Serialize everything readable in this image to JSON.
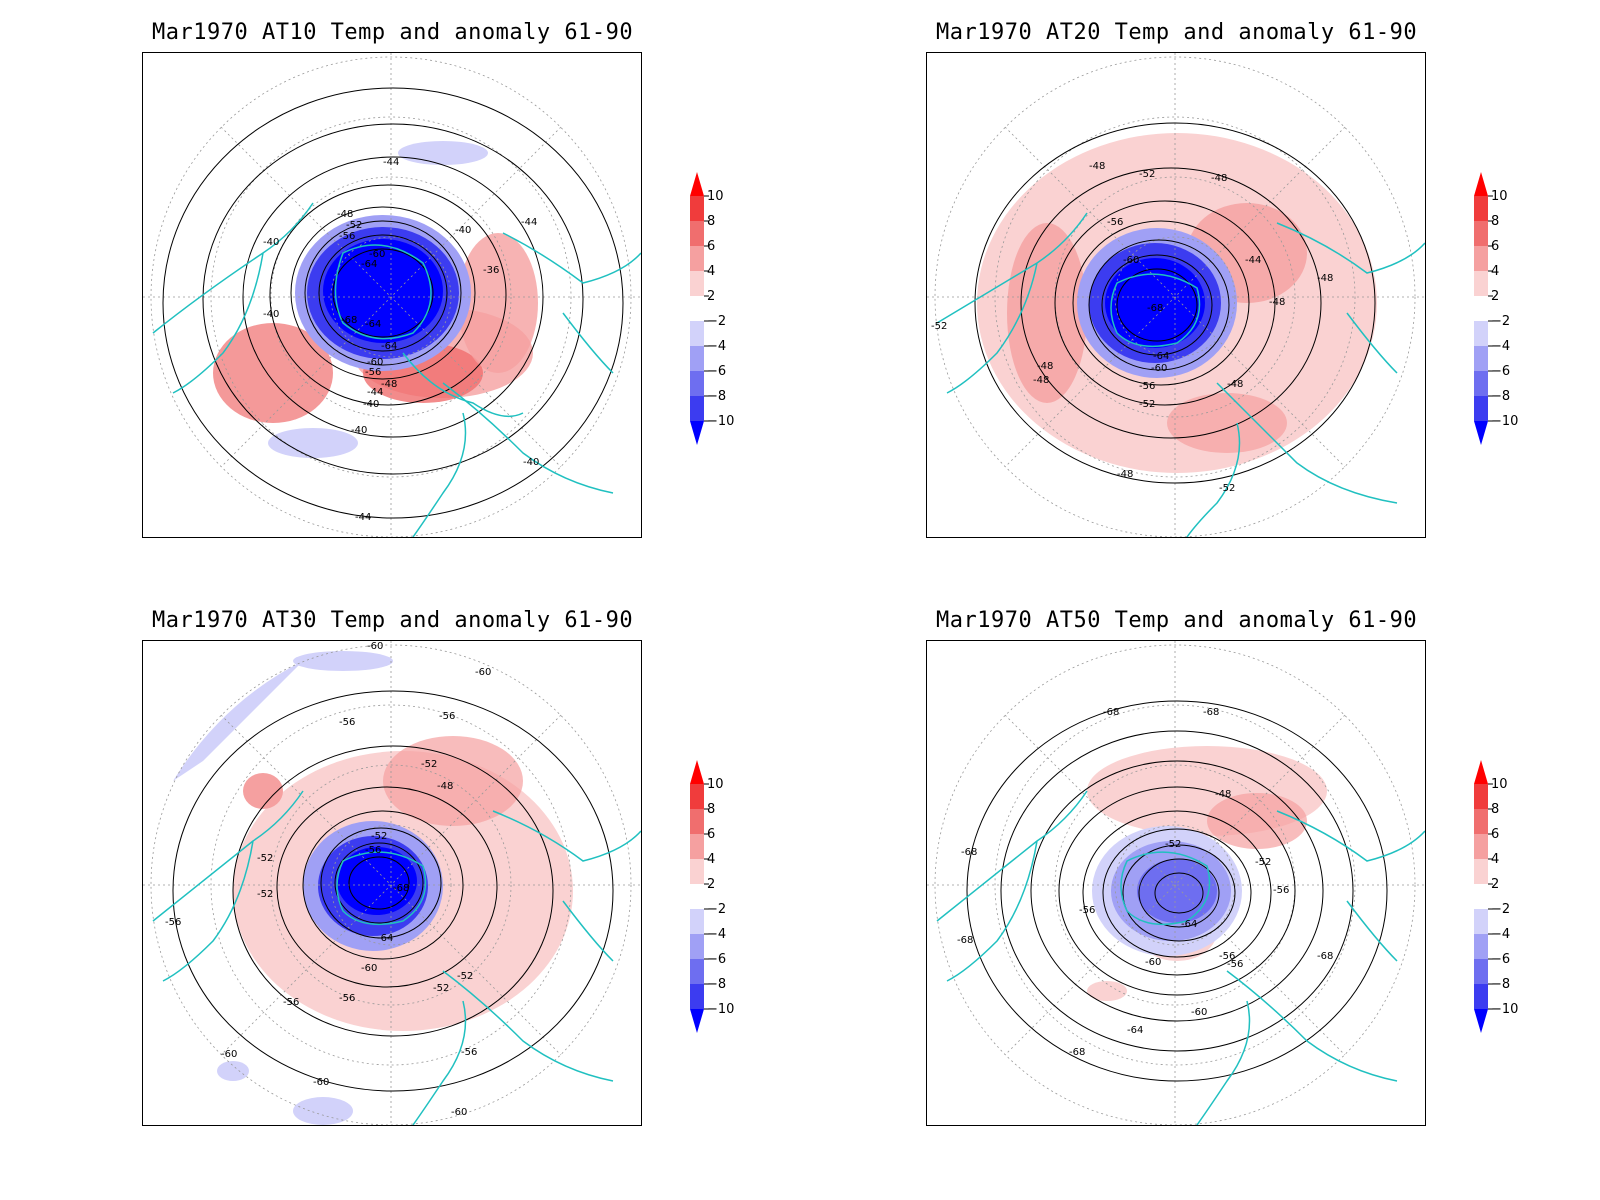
{
  "colors": {
    "coast": "#20c0c0",
    "contour": "#000000",
    "grid": "#999999",
    "scale": [
      "#0000ff",
      "#3c3cf0",
      "#6e6ef0",
      "#a0a0f5",
      "#d2d2fa",
      "#ffffff",
      "#fad2d2",
      "#f5a0a0",
      "#f06e6e",
      "#f03c3c",
      "#ff0000"
    ]
  },
  "colorbar": {
    "ticks": [
      "10",
      "8",
      "6",
      "4",
      "2",
      "−2",
      "−4",
      "−6",
      "−8",
      "−10"
    ]
  },
  "panels": [
    {
      "title": "Mar1970 AT10 Temp and anomaly 61-90",
      "contour_labels": [
        "-44",
        "-48",
        "-52",
        "-56",
        "-60",
        "-64",
        "-68",
        "-64",
        "-64",
        "-60",
        "-56",
        "-48",
        "-44",
        "-40",
        "-40",
        "-40",
        "-40",
        "-36",
        "-44",
        "-40",
        "-40",
        "-44"
      ]
    },
    {
      "title": "Mar1970 AT20 Temp and anomaly 61-90",
      "contour_labels": [
        "-48",
        "-52",
        "-48",
        "-56",
        "-60",
        "-68",
        "-64",
        "-60",
        "-56",
        "-52",
        "-48",
        "-44",
        "-48",
        "-48",
        "-52",
        "-48",
        "-48",
        "-48",
        "-52"
      ]
    },
    {
      "title": "Mar1970 AT30 Temp and anomaly 61-90",
      "contour_labels": [
        "-60",
        "-60",
        "-56",
        "-56",
        "-52",
        "-48",
        "-52",
        "-56",
        "-68",
        "-64",
        "-60",
        "-52",
        "-52",
        "-56",
        "-56",
        "-52",
        "-52",
        "-56",
        "-60",
        "-60",
        "-56",
        "-60"
      ]
    },
    {
      "title": "Mar1970 AT50 Temp and anomaly 61-90",
      "contour_labels": [
        "-68",
        "-68",
        "-48",
        "-52",
        "-52",
        "-56",
        "-64",
        "-56",
        "-68",
        "-56",
        "-60",
        "-56",
        "-60",
        "-64",
        "-68",
        "-68",
        "-68"
      ]
    }
  ]
}
